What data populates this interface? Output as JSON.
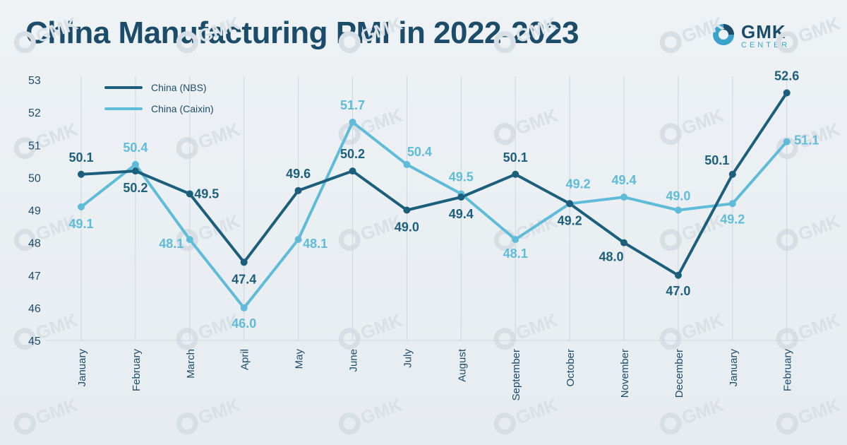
{
  "title": "China Manufacturing PMI in 2022-2023",
  "logo": {
    "brand": "GMK",
    "sub": "CENTER"
  },
  "colors": {
    "nbs": "#1b5f7d",
    "caixin": "#5fbcd9",
    "title": "#1b4d6b",
    "grid": "#cfd6dc"
  },
  "chart_data": {
    "type": "line",
    "title": "China Manufacturing PMI in 2022-2023",
    "categories": [
      "January",
      "February",
      "March",
      "April",
      "May",
      "June",
      "July",
      "August",
      "September",
      "October",
      "November",
      "December",
      "January",
      "February"
    ],
    "ylim": [
      45,
      53
    ],
    "yticks": [
      45,
      46,
      47,
      48,
      49,
      50,
      51,
      52,
      53
    ],
    "grid": "vertical",
    "legend_position": "top-left",
    "series": [
      {
        "name": "China (NBS)",
        "values": [
          50.1,
          50.2,
          49.5,
          47.4,
          49.6,
          50.2,
          49.0,
          49.4,
          50.1,
          49.2,
          48.0,
          47.0,
          50.1,
          52.6
        ]
      },
      {
        "name": "China (Caixin)",
        "values": [
          49.1,
          50.4,
          48.1,
          46.0,
          48.1,
          51.7,
          50.4,
          49.5,
          48.1,
          49.2,
          49.4,
          49.0,
          49.2,
          51.1
        ]
      }
    ]
  }
}
